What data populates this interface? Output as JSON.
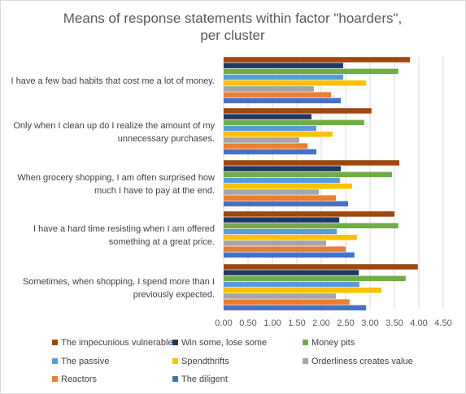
{
  "chart_data": {
    "type": "bar",
    "orientation": "horizontal",
    "title_lines": [
      "Means of response statements within factor \"hoarders\",",
      "per cluster"
    ],
    "categories": [
      [
        "I have a few bad habits that cost me a lot of money."
      ],
      [
        "Only when I clean up do I realize the amount of my",
        "unnecessary purchases."
      ],
      [
        "When grocery shopping, I am often surprised how",
        "much I have to pay at the end."
      ],
      [
        "I have a hard time resisting when I am offered",
        "something at a great price."
      ],
      [
        "Sometimes, when shopping, I spend more than I",
        "previously expected."
      ]
    ],
    "x_ticks": [
      "0.00",
      "0.50",
      "1.00",
      "1.50",
      "2.00",
      "2.50",
      "3.00",
      "3.50",
      "4.00",
      "4.50"
    ],
    "xlim": [
      0,
      4.5
    ],
    "grid": true,
    "legend_position": "bottom",
    "series": [
      {
        "name": "The impecunious vulnerable",
        "color": "#9e480e",
        "values": [
          3.82,
          3.03,
          3.6,
          3.5,
          3.98
        ]
      },
      {
        "name": "Win some, lose some",
        "color": "#203864",
        "values": [
          2.45,
          1.8,
          2.4,
          2.37,
          2.77
        ]
      },
      {
        "name": "Money pits",
        "color": "#70ad47",
        "values": [
          3.58,
          2.88,
          3.45,
          3.58,
          3.73
        ]
      },
      {
        "name": "The passive",
        "color": "#5b9bd5",
        "values": [
          2.45,
          1.9,
          2.38,
          2.32,
          2.78
        ]
      },
      {
        "name": "Spendthrifts",
        "color": "#ffc000",
        "values": [
          2.92,
          2.23,
          2.63,
          2.73,
          3.23
        ]
      },
      {
        "name": "Orderliness creates value",
        "color": "#a5a5a5",
        "values": [
          1.85,
          1.55,
          1.95,
          2.1,
          2.3
        ]
      },
      {
        "name": "Reactors",
        "color": "#ed7d31",
        "values": [
          2.2,
          1.72,
          2.3,
          2.5,
          2.58
        ]
      },
      {
        "name": "The diligent",
        "color": "#4472c4",
        "values": [
          2.4,
          1.9,
          2.55,
          2.68,
          2.92
        ]
      }
    ]
  }
}
